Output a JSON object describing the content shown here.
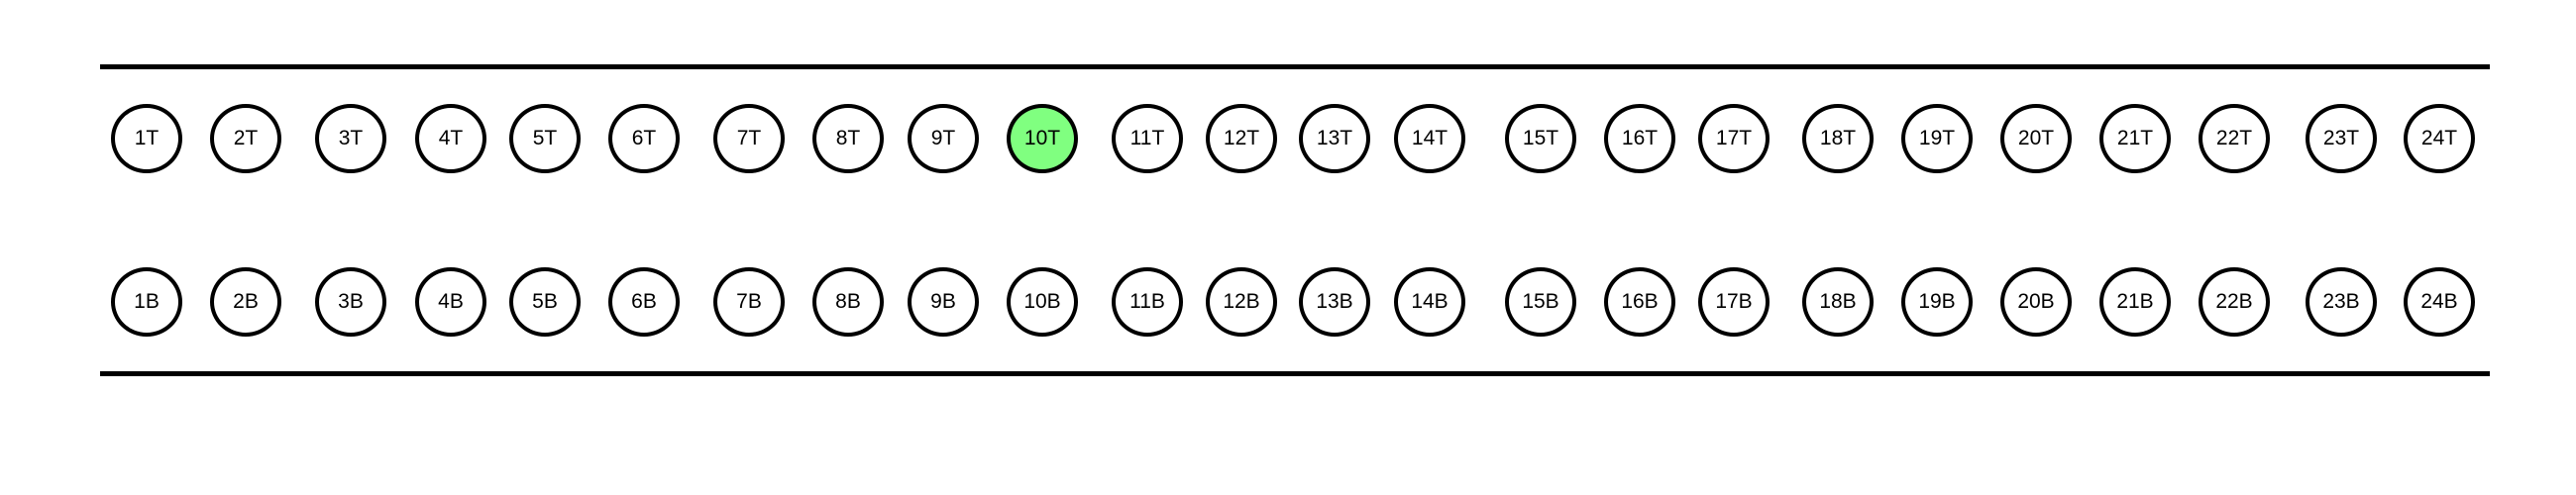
{
  "colors": {
    "highlight": "#80ff80",
    "outline": "#000000",
    "background": "#ffffff"
  },
  "selected": "10T",
  "top_row": [
    "1T",
    "2T",
    "3T",
    "4T",
    "5T",
    "6T",
    "7T",
    "8T",
    "9T",
    "10T",
    "11T",
    "12T",
    "13T",
    "14T",
    "15T",
    "16T",
    "17T",
    "18T",
    "19T",
    "20T",
    "21T",
    "22T",
    "23T",
    "24T"
  ],
  "bottom_row": [
    "1B",
    "2B",
    "3B",
    "4B",
    "5B",
    "6B",
    "7B",
    "8B",
    "9B",
    "10B",
    "11B",
    "12B",
    "13B",
    "14B",
    "15B",
    "16B",
    "17B",
    "18B",
    "19B",
    "20B",
    "21B",
    "22B",
    "23B",
    "24B"
  ]
}
